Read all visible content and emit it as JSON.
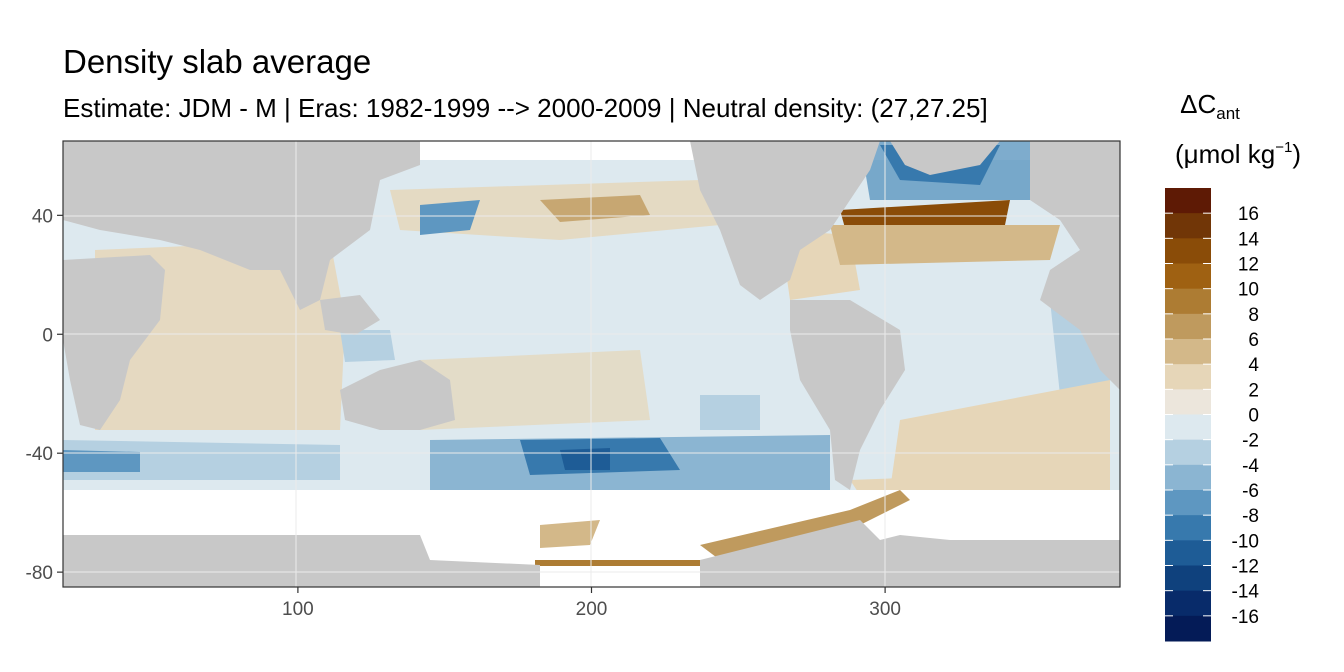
{
  "chart_data": {
    "type": "heatmap",
    "title": "Density slab average",
    "subtitle": "Estimate: JDM - M | Eras: 1982-1999 --> 2000-2009 | Neutral density: (27,27.25]",
    "xlabel": "",
    "ylabel": "",
    "xlim": [
      20,
      380
    ],
    "ylim": [
      -85,
      65
    ],
    "x_ticks": [
      100,
      200,
      300
    ],
    "y_ticks": [
      40,
      0,
      -40,
      -80
    ],
    "grid": true,
    "legend": {
      "placement": "right",
      "title_main": "ΔC",
      "title_sub": "ant",
      "unit_prefix": "(μmol kg",
      "unit_sup": "−1",
      "unit_suffix": ")",
      "labels": [
        "16",
        "14",
        "12",
        "10",
        "8",
        "6",
        "4",
        "2",
        "0",
        "-2",
        "-4",
        "-6",
        "-8",
        "-10",
        "-12",
        "-14",
        "-16"
      ],
      "colors": [
        "#5e1a05",
        "#713607",
        "#8a4c08",
        "#9f6112",
        "#ad7c33",
        "#bf9a5e",
        "#d3b889",
        "#e6d6b8",
        "#ece6dc",
        "#dde9ef",
        "#b5d0e1",
        "#8bb5d2",
        "#5e97c1",
        "#3779ad",
        "#1e5c96",
        "#0f417d",
        "#082b6a",
        "#041b57"
      ]
    }
  }
}
